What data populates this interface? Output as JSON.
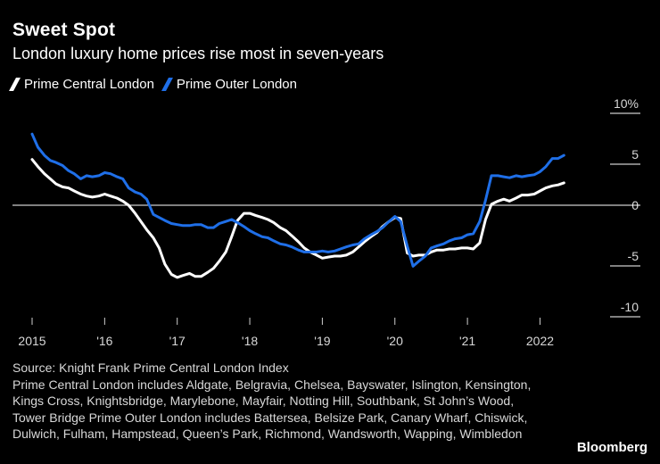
{
  "header": {
    "title": "Sweet Spot",
    "subtitle": "London luxury home prices rise most in seven-years"
  },
  "colors": {
    "prime_central": "#ffffff",
    "prime_outer": "#1f6fe8",
    "background": "#000000",
    "zero_line": "#ffffff"
  },
  "footnote": {
    "source": "Source: Knight Frank Prime Central London Index",
    "note": "Prime Central London includes Aldgate, Belgravia, Chelsea, Bayswater, Islington, Kensington, Kings Cross, Knightsbridge, Marylebone, Mayfair, Notting Hill, Southbank, St John’s Wood, Tower Bridge Prime Outer London includes Battersea, Belsize Park, Canary Wharf, Chiswick, Dulwich, Fulham, Hampstead, Queen’s Park, Richmond, Wandsworth, Wapping, Wimbledon"
  },
  "brand": "Bloomberg",
  "chart_data": {
    "type": "line",
    "title": "Sweet Spot",
    "subtitle": "London luxury home prices rise most in seven-years",
    "xlabel": "",
    "ylabel": "",
    "x_ticks": [
      {
        "value": 2015.0,
        "label": "2015"
      },
      {
        "value": 2016.0,
        "label": "'16"
      },
      {
        "value": 2017.0,
        "label": "'17"
      },
      {
        "value": 2018.0,
        "label": "'18"
      },
      {
        "value": 2019.0,
        "label": "'19"
      },
      {
        "value": 2020.0,
        "label": "'20"
      },
      {
        "value": 2021.0,
        "label": "'21"
      },
      {
        "value": 2022.0,
        "label": "2022"
      }
    ],
    "y_ticks": [
      {
        "value": 10,
        "label": "10%"
      },
      {
        "value": 5,
        "label": "5"
      },
      {
        "value": 0,
        "label": "0"
      },
      {
        "value": -5,
        "label": "-5"
      },
      {
        "value": -10,
        "label": "-10"
      }
    ],
    "xlim": [
      2015.0,
      2022.4
    ],
    "ylim": [
      -10,
      10
    ],
    "legend": "top-left",
    "series": [
      {
        "name": "Prime Central London",
        "color": "#ffffff",
        "points": [
          [
            2015.0,
            4.5
          ],
          [
            2015.08,
            3.8
          ],
          [
            2015.17,
            3.1
          ],
          [
            2015.25,
            2.6
          ],
          [
            2015.33,
            2.1
          ],
          [
            2015.42,
            1.8
          ],
          [
            2015.5,
            1.7
          ],
          [
            2015.58,
            1.4
          ],
          [
            2015.67,
            1.1
          ],
          [
            2015.75,
            0.9
          ],
          [
            2015.83,
            0.8
          ],
          [
            2015.92,
            0.9
          ],
          [
            2016.0,
            1.1
          ],
          [
            2016.08,
            0.9
          ],
          [
            2016.17,
            0.7
          ],
          [
            2016.25,
            0.4
          ],
          [
            2016.33,
            0.0
          ],
          [
            2016.42,
            -0.8
          ],
          [
            2016.5,
            -1.6
          ],
          [
            2016.58,
            -2.4
          ],
          [
            2016.67,
            -3.2
          ],
          [
            2016.75,
            -4.2
          ],
          [
            2016.83,
            -5.8
          ],
          [
            2016.92,
            -6.8
          ],
          [
            2017.0,
            -7.1
          ],
          [
            2017.08,
            -6.9
          ],
          [
            2017.17,
            -6.7
          ],
          [
            2017.25,
            -7.0
          ],
          [
            2017.33,
            -7.0
          ],
          [
            2017.42,
            -6.6
          ],
          [
            2017.5,
            -6.2
          ],
          [
            2017.58,
            -5.5
          ],
          [
            2017.67,
            -4.6
          ],
          [
            2017.75,
            -3.1
          ],
          [
            2017.83,
            -1.5
          ],
          [
            2017.92,
            -0.8
          ],
          [
            2018.0,
            -0.8
          ],
          [
            2018.08,
            -1.0
          ],
          [
            2018.17,
            -1.2
          ],
          [
            2018.25,
            -1.4
          ],
          [
            2018.33,
            -1.7
          ],
          [
            2018.42,
            -2.2
          ],
          [
            2018.5,
            -2.5
          ],
          [
            2018.58,
            -3.0
          ],
          [
            2018.67,
            -3.6
          ],
          [
            2018.75,
            -4.2
          ],
          [
            2018.83,
            -4.6
          ],
          [
            2018.92,
            -4.9
          ],
          [
            2019.0,
            -5.2
          ],
          [
            2019.08,
            -5.1
          ],
          [
            2019.17,
            -5.0
          ],
          [
            2019.25,
            -5.0
          ],
          [
            2019.33,
            -4.9
          ],
          [
            2019.42,
            -4.6
          ],
          [
            2019.5,
            -4.1
          ],
          [
            2019.58,
            -3.6
          ],
          [
            2019.67,
            -3.1
          ],
          [
            2019.75,
            -2.7
          ],
          [
            2019.83,
            -2.1
          ],
          [
            2019.92,
            -1.6
          ],
          [
            2020.0,
            -1.2
          ],
          [
            2020.08,
            -1.3
          ],
          [
            2020.17,
            -4.7
          ],
          [
            2020.25,
            -5.0
          ],
          [
            2020.33,
            -4.9
          ],
          [
            2020.42,
            -4.9
          ],
          [
            2020.5,
            -4.6
          ],
          [
            2020.58,
            -4.4
          ],
          [
            2020.67,
            -4.4
          ],
          [
            2020.75,
            -4.3
          ],
          [
            2020.83,
            -4.3
          ],
          [
            2020.92,
            -4.2
          ],
          [
            2021.0,
            -4.2
          ],
          [
            2021.08,
            -4.3
          ],
          [
            2021.17,
            -3.7
          ],
          [
            2021.25,
            -1.4
          ],
          [
            2021.33,
            0.1
          ],
          [
            2021.42,
            0.4
          ],
          [
            2021.5,
            0.6
          ],
          [
            2021.58,
            0.4
          ],
          [
            2021.67,
            0.7
          ],
          [
            2021.75,
            1.0
          ],
          [
            2021.83,
            1.0
          ],
          [
            2021.92,
            1.1
          ],
          [
            2022.0,
            1.4
          ],
          [
            2022.08,
            1.7
          ],
          [
            2022.17,
            1.9
          ],
          [
            2022.25,
            2.0
          ],
          [
            2022.33,
            2.2
          ]
        ]
      },
      {
        "name": "Prime Outer London",
        "color": "#1f6fe8",
        "points": [
          [
            2015.0,
            7.0
          ],
          [
            2015.08,
            5.7
          ],
          [
            2015.17,
            4.9
          ],
          [
            2015.25,
            4.4
          ],
          [
            2015.33,
            4.2
          ],
          [
            2015.42,
            3.9
          ],
          [
            2015.5,
            3.4
          ],
          [
            2015.58,
            3.1
          ],
          [
            2015.67,
            2.6
          ],
          [
            2015.75,
            2.9
          ],
          [
            2015.83,
            2.8
          ],
          [
            2015.92,
            2.9
          ],
          [
            2016.0,
            3.2
          ],
          [
            2016.08,
            3.1
          ],
          [
            2016.17,
            2.8
          ],
          [
            2016.25,
            2.6
          ],
          [
            2016.33,
            1.7
          ],
          [
            2016.42,
            1.3
          ],
          [
            2016.5,
            1.1
          ],
          [
            2016.58,
            0.6
          ],
          [
            2016.67,
            -0.9
          ],
          [
            2016.75,
            -1.2
          ],
          [
            2016.83,
            -1.5
          ],
          [
            2016.92,
            -1.8
          ],
          [
            2017.0,
            -1.9
          ],
          [
            2017.08,
            -2.0
          ],
          [
            2017.17,
            -2.0
          ],
          [
            2017.25,
            -1.9
          ],
          [
            2017.33,
            -1.9
          ],
          [
            2017.42,
            -2.2
          ],
          [
            2017.5,
            -2.2
          ],
          [
            2017.58,
            -1.8
          ],
          [
            2017.67,
            -1.6
          ],
          [
            2017.75,
            -1.4
          ],
          [
            2017.83,
            -1.7
          ],
          [
            2017.92,
            -2.1
          ],
          [
            2018.0,
            -2.5
          ],
          [
            2018.08,
            -2.8
          ],
          [
            2018.17,
            -3.1
          ],
          [
            2018.25,
            -3.2
          ],
          [
            2018.33,
            -3.5
          ],
          [
            2018.42,
            -3.8
          ],
          [
            2018.5,
            -3.9
          ],
          [
            2018.58,
            -4.1
          ],
          [
            2018.67,
            -4.4
          ],
          [
            2018.75,
            -4.6
          ],
          [
            2018.83,
            -4.6
          ],
          [
            2018.92,
            -4.6
          ],
          [
            2019.0,
            -4.5
          ],
          [
            2019.08,
            -4.6
          ],
          [
            2019.17,
            -4.5
          ],
          [
            2019.25,
            -4.3
          ],
          [
            2019.33,
            -4.1
          ],
          [
            2019.42,
            -3.9
          ],
          [
            2019.5,
            -3.8
          ],
          [
            2019.58,
            -3.3
          ],
          [
            2019.67,
            -2.9
          ],
          [
            2019.75,
            -2.6
          ],
          [
            2019.83,
            -2.2
          ],
          [
            2019.92,
            -1.6
          ],
          [
            2020.0,
            -1.1
          ],
          [
            2020.08,
            -1.6
          ],
          [
            2020.17,
            -4.0
          ],
          [
            2020.25,
            -6.0
          ],
          [
            2020.33,
            -5.5
          ],
          [
            2020.42,
            -5.0
          ],
          [
            2020.5,
            -4.2
          ],
          [
            2020.58,
            -4.0
          ],
          [
            2020.67,
            -3.8
          ],
          [
            2020.75,
            -3.5
          ],
          [
            2020.83,
            -3.3
          ],
          [
            2020.92,
            -3.2
          ],
          [
            2021.0,
            -2.9
          ],
          [
            2021.08,
            -2.8
          ],
          [
            2021.17,
            -1.6
          ],
          [
            2021.25,
            0.5
          ],
          [
            2021.33,
            2.9
          ],
          [
            2021.42,
            2.9
          ],
          [
            2021.5,
            2.8
          ],
          [
            2021.58,
            2.7
          ],
          [
            2021.67,
            2.9
          ],
          [
            2021.75,
            2.8
          ],
          [
            2021.83,
            2.9
          ],
          [
            2021.92,
            3.0
          ],
          [
            2022.0,
            3.3
          ],
          [
            2022.08,
            3.8
          ],
          [
            2022.17,
            4.6
          ],
          [
            2022.25,
            4.6
          ],
          [
            2022.33,
            4.9
          ]
        ]
      }
    ]
  }
}
